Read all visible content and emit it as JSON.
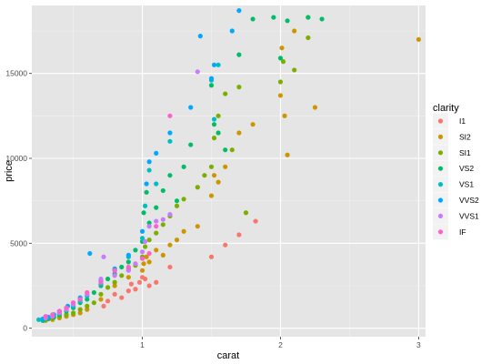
{
  "chart_data": {
    "type": "scatter",
    "title": "",
    "xlabel": "carat",
    "ylabel": "price",
    "xlim": [
      0.2,
      3.05
    ],
    "ylim": [
      -500,
      19000
    ],
    "x_ticks": [
      1,
      2,
      3
    ],
    "y_ticks": [
      0,
      5000,
      10000,
      15000
    ],
    "x_tick_labels": [
      "1",
      "2",
      "3"
    ],
    "y_tick_labels": [
      "0",
      "5000",
      "10000",
      "15000"
    ],
    "grid": true,
    "panel_background": "#e5e5e5",
    "legend": {
      "title": "clarity",
      "position": "right",
      "entries": [
        {
          "label": "I1",
          "color": "#F8766D"
        },
        {
          "label": "SI2",
          "color": "#CD9600"
        },
        {
          "label": "SI1",
          "color": "#7CAE00"
        },
        {
          "label": "VS2",
          "color": "#00BE67"
        },
        {
          "label": "VS1",
          "color": "#00BFC4"
        },
        {
          "label": "VVS2",
          "color": "#00A9FF"
        },
        {
          "label": "VVS1",
          "color": "#C77CFF"
        },
        {
          "label": "IF",
          "color": "#FF61CC"
        }
      ]
    },
    "series": [
      {
        "name": "I1",
        "color": "#F8766D",
        "x": [
          0.72,
          0.75,
          0.8,
          0.85,
          0.9,
          0.92,
          0.95,
          0.98,
          1.0,
          1.02,
          1.05,
          1.1,
          1.2,
          1.5,
          1.6,
          1.7,
          1.82
        ],
        "y": [
          1300,
          1600,
          2000,
          1800,
          2200,
          2600,
          2300,
          2700,
          3000,
          2900,
          2500,
          2700,
          3600,
          4200,
          4900,
          5500,
          6300
        ]
      },
      {
        "name": "SI2",
        "color": "#CD9600",
        "x": [
          0.3,
          0.35,
          0.4,
          0.45,
          0.5,
          0.55,
          0.6,
          0.7,
          0.8,
          0.9,
          1.0,
          1.01,
          1.03,
          1.05,
          1.1,
          1.15,
          1.2,
          1.25,
          1.3,
          1.4,
          1.5,
          1.52,
          1.55,
          1.6,
          1.7,
          1.8,
          2.0,
          2.01,
          2.03,
          2.05,
          2.1,
          2.2,
          2.25,
          3.0
        ],
        "y": [
          450,
          500,
          600,
          700,
          800,
          900,
          1100,
          1700,
          2500,
          3000,
          3400,
          3800,
          4200,
          3900,
          4600,
          4300,
          4900,
          5200,
          5700,
          6000,
          7800,
          9000,
          8600,
          9500,
          11500,
          12000,
          13700,
          16500,
          12500,
          10200,
          17500,
          18300,
          13000,
          17000
        ]
      },
      {
        "name": "SI1",
        "color": "#7CAE00",
        "x": [
          0.3,
          0.35,
          0.4,
          0.45,
          0.5,
          0.55,
          0.6,
          0.65,
          0.7,
          0.75,
          0.8,
          0.85,
          0.9,
          0.95,
          1.0,
          1.02,
          1.05,
          1.1,
          1.15,
          1.2,
          1.25,
          1.3,
          1.4,
          1.45,
          1.5,
          1.52,
          1.55,
          1.6,
          1.65,
          1.7,
          1.75,
          2.0,
          2.02,
          2.1,
          2.2
        ],
        "y": [
          500,
          600,
          700,
          800,
          900,
          1100,
          1300,
          1500,
          2000,
          2400,
          2700,
          3100,
          3500,
          3700,
          4200,
          4800,
          5200,
          5600,
          6100,
          6600,
          7200,
          7600,
          8300,
          9000,
          9500,
          11200,
          12500,
          13800,
          10500,
          14200,
          6800,
          14500,
          15700,
          15200,
          17100
        ]
      },
      {
        "name": "VS2",
        "color": "#00BE67",
        "x": [
          0.28,
          0.32,
          0.36,
          0.4,
          0.45,
          0.5,
          0.55,
          0.6,
          0.65,
          0.7,
          0.75,
          0.8,
          0.85,
          0.9,
          0.95,
          1.0,
          1.01,
          1.03,
          1.05,
          1.1,
          1.15,
          1.2,
          1.25,
          1.3,
          1.35,
          1.5,
          1.52,
          1.55,
          1.6,
          1.7,
          1.8,
          1.95,
          2.0,
          2.05,
          2.2,
          2.3
        ],
        "y": [
          450,
          550,
          650,
          800,
          1000,
          1200,
          1500,
          1700,
          2100,
          2500,
          2900,
          3200,
          3600,
          3900,
          4600,
          5100,
          6800,
          8000,
          6200,
          7100,
          8100,
          9000,
          7500,
          9500,
          10800,
          14300,
          12000,
          11500,
          10500,
          16100,
          18200,
          18300,
          15900,
          18100,
          18300,
          18200
        ]
      },
      {
        "name": "VS1",
        "color": "#00BFC4",
        "x": [
          0.25,
          0.3,
          0.35,
          0.4,
          0.45,
          0.5,
          0.55,
          0.6,
          0.7,
          0.8,
          0.9,
          1.0,
          1.02,
          1.05,
          1.1,
          1.2,
          1.5,
          1.52,
          1.55
        ],
        "y": [
          500,
          600,
          700,
          900,
          1100,
          1300,
          1600,
          1900,
          2600,
          3400,
          4200,
          5300,
          7200,
          9300,
          8500,
          11000,
          14600,
          12300,
          15500
        ]
      },
      {
        "name": "VVS2",
        "color": "#00A9FF",
        "x": [
          0.28,
          0.32,
          0.36,
          0.4,
          0.46,
          0.5,
          0.55,
          0.62,
          0.7,
          0.8,
          0.9,
          1.0,
          1.03,
          1.05,
          1.1,
          1.2,
          1.35,
          1.42,
          1.5,
          1.52,
          1.65,
          1.7
        ],
        "y": [
          550,
          650,
          800,
          1000,
          1300,
          1500,
          1800,
          4400,
          2800,
          3500,
          4300,
          5700,
          8500,
          9800,
          10300,
          11500,
          13000,
          17200,
          14700,
          15500,
          17500,
          18700
        ]
      },
      {
        "name": "VVS1",
        "color": "#C77CFF",
        "x": [
          0.3,
          0.35,
          0.4,
          0.45,
          0.5,
          0.55,
          0.6,
          0.7,
          0.72,
          0.8,
          0.9,
          0.95,
          1.0,
          1.02,
          1.05,
          1.1,
          1.15,
          1.2,
          1.4
        ],
        "y": [
          600,
          700,
          900,
          1100,
          1400,
          1700,
          2000,
          2900,
          4200,
          3100,
          3400,
          3800,
          4500,
          5100,
          6000,
          6300,
          6400,
          6700,
          15100
        ]
      },
      {
        "name": "IF",
        "color": "#FF61CC",
        "x": [
          0.3,
          0.35,
          0.4,
          0.45,
          0.5,
          0.55,
          0.6,
          0.7,
          0.8,
          0.9,
          1.0,
          1.05,
          1.1,
          1.2
        ],
        "y": [
          700,
          800,
          1000,
          1200,
          1500,
          1700,
          2100,
          2700,
          3400,
          3600,
          4100,
          4400,
          6000,
          12500
        ]
      }
    ]
  }
}
